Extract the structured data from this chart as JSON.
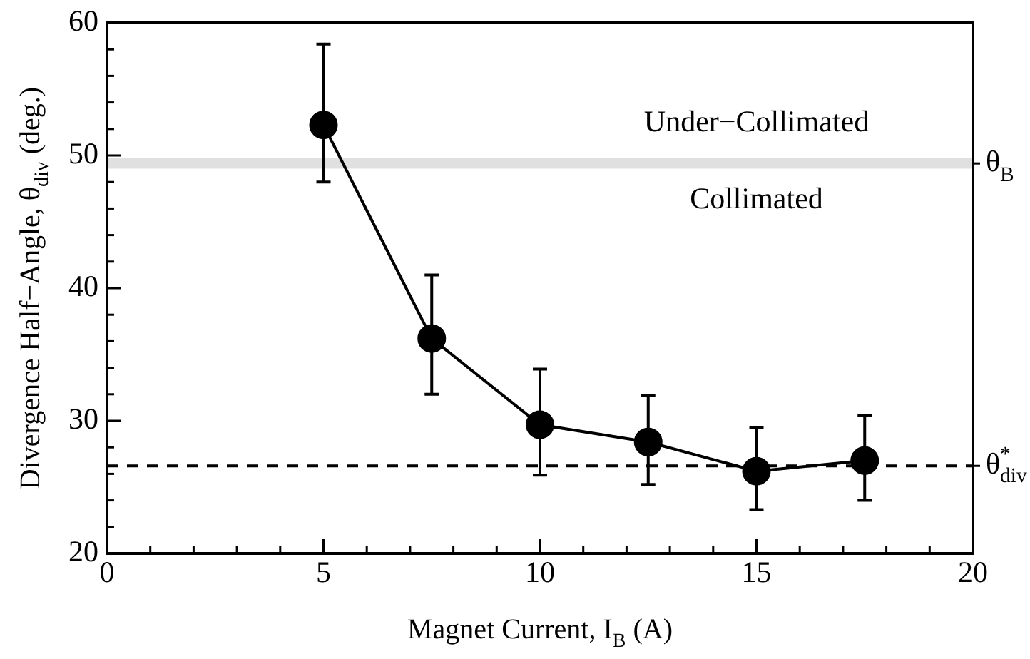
{
  "chart_data": {
    "type": "line",
    "xlabel": "Magnet Current, I$_{B}$ (A)",
    "ylabel": "Divergence Half−Angle, θ$_{div}$ (deg.)",
    "x": [
      5,
      7.5,
      10,
      12.5,
      15,
      17.5
    ],
    "series": [
      {
        "color": "#000000",
        "values": [
          52.3,
          36.2,
          29.7,
          28.4,
          26.2,
          27.0
        ],
        "errors": [
          [
            48.0,
            58.4
          ],
          [
            32.0,
            41.0
          ],
          [
            25.9,
            33.9
          ],
          [
            25.2,
            31.9
          ],
          [
            23.3,
            29.5
          ],
          [
            24.0,
            30.4
          ]
        ]
      }
    ],
    "xlim": [
      0,
      20
    ],
    "xticks": [
      0,
      {
        "value": 1,
        "label": null
      },
      {
        "value": 2,
        "label": null
      },
      {
        "value": 3,
        "label": null
      },
      {
        "value": 4,
        "label": null
      },
      5,
      {
        "value": 6,
        "label": null
      },
      {
        "value": 7,
        "label": null
      },
      {
        "value": 8,
        "label": null
      },
      {
        "value": 9,
        "label": null
      },
      10,
      {
        "value": 11,
        "label": null
      },
      {
        "value": 12,
        "label": null
      },
      {
        "value": 13,
        "label": null
      },
      {
        "value": 14,
        "label": null
      },
      15,
      {
        "value": 16,
        "label": null
      },
      {
        "value": 17,
        "label": null
      },
      {
        "value": 18,
        "label": null
      },
      {
        "value": 19,
        "label": null
      },
      20
    ],
    "ylim": [
      20,
      60
    ],
    "yticks": [
      20,
      {
        "value": 22,
        "label": null
      },
      {
        "value": 24,
        "label": null
      },
      {
        "value": 26,
        "label": null
      },
      {
        "value": 28,
        "label": null
      },
      30,
      {
        "value": 32,
        "label": null
      },
      {
        "value": 34,
        "label": null
      },
      {
        "value": 36,
        "label": null
      },
      {
        "value": 38,
        "label": null
      },
      40,
      {
        "value": 42,
        "label": null
      },
      {
        "value": 44,
        "label": null
      },
      {
        "value": 46,
        "label": null
      },
      {
        "value": 48,
        "label": null
      },
      50,
      {
        "value": 52,
        "label": null
      },
      {
        "value": 54,
        "label": null
      },
      {
        "value": 56,
        "label": null
      },
      {
        "value": 58,
        "label": null
      },
      60
    ],
    "bands": [
      {
        "axis": "y",
        "from": 49.0,
        "to": 49.8,
        "label": "θ$_{B}$",
        "color": "#e0e0e0"
      }
    ],
    "ref_lines": [
      {
        "axis": "y",
        "value": 26.6,
        "label": "θ$^{*}$$_{div}$",
        "color": "#000000",
        "line_style": "dashed"
      }
    ],
    "annotations": [
      "Under−Collimated",
      "Collimated"
    ],
    "marker": "circle",
    "line_style": "solid",
    "grid": false,
    "legend": false
  }
}
